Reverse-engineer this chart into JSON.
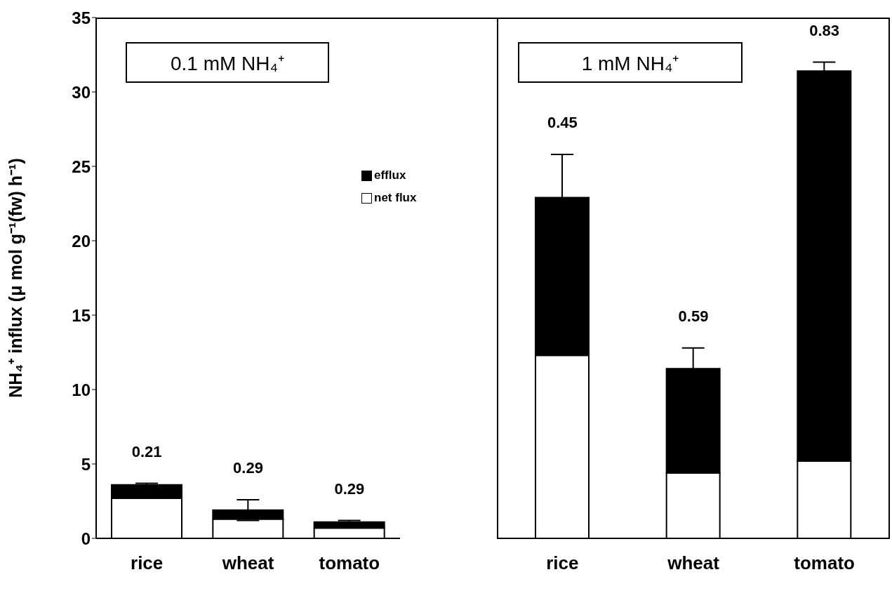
{
  "chart_data": [
    {
      "type": "bar",
      "title": "0.1 mM NH₄⁺",
      "ylabel": "NH₄⁺ influx (μ mol g⁻¹(fw) h⁻¹)",
      "categories": [
        "rice",
        "wheat",
        "tomato"
      ],
      "stacked": true,
      "series": [
        {
          "name": "net flux",
          "color": "#ffffff",
          "values": [
            2.7,
            1.3,
            0.7
          ]
        },
        {
          "name": "efflux",
          "color": "#000000",
          "values": [
            0.9,
            0.6,
            0.4
          ],
          "errors": [
            0.1,
            0.7,
            0.1
          ]
        }
      ],
      "ylim": [
        0,
        35
      ],
      "yticks": [
        0,
        5,
        10,
        15,
        20,
        25,
        30,
        35
      ],
      "grid": false,
      "legend": "top right",
      "annotations": [
        "0.21",
        "0.29",
        "0.29"
      ]
    },
    {
      "type": "bar",
      "title": "1 mM NH₄⁺",
      "categories": [
        "rice",
        "wheat",
        "tomato"
      ],
      "stacked": true,
      "series": [
        {
          "color": "#ffffff",
          "values": [
            12.3,
            4.4,
            5.2
          ]
        },
        {
          "color": "#000000",
          "values": [
            10.6,
            7.0,
            26.2
          ],
          "errors": [
            2.9,
            1.4,
            0.6
          ]
        }
      ],
      "ylim": [
        0,
        35
      ],
      "grid": false,
      "legend": false,
      "tick_labels": "x",
      "annotations": [
        "0.45",
        "0.59",
        "0.83"
      ]
    }
  ]
}
